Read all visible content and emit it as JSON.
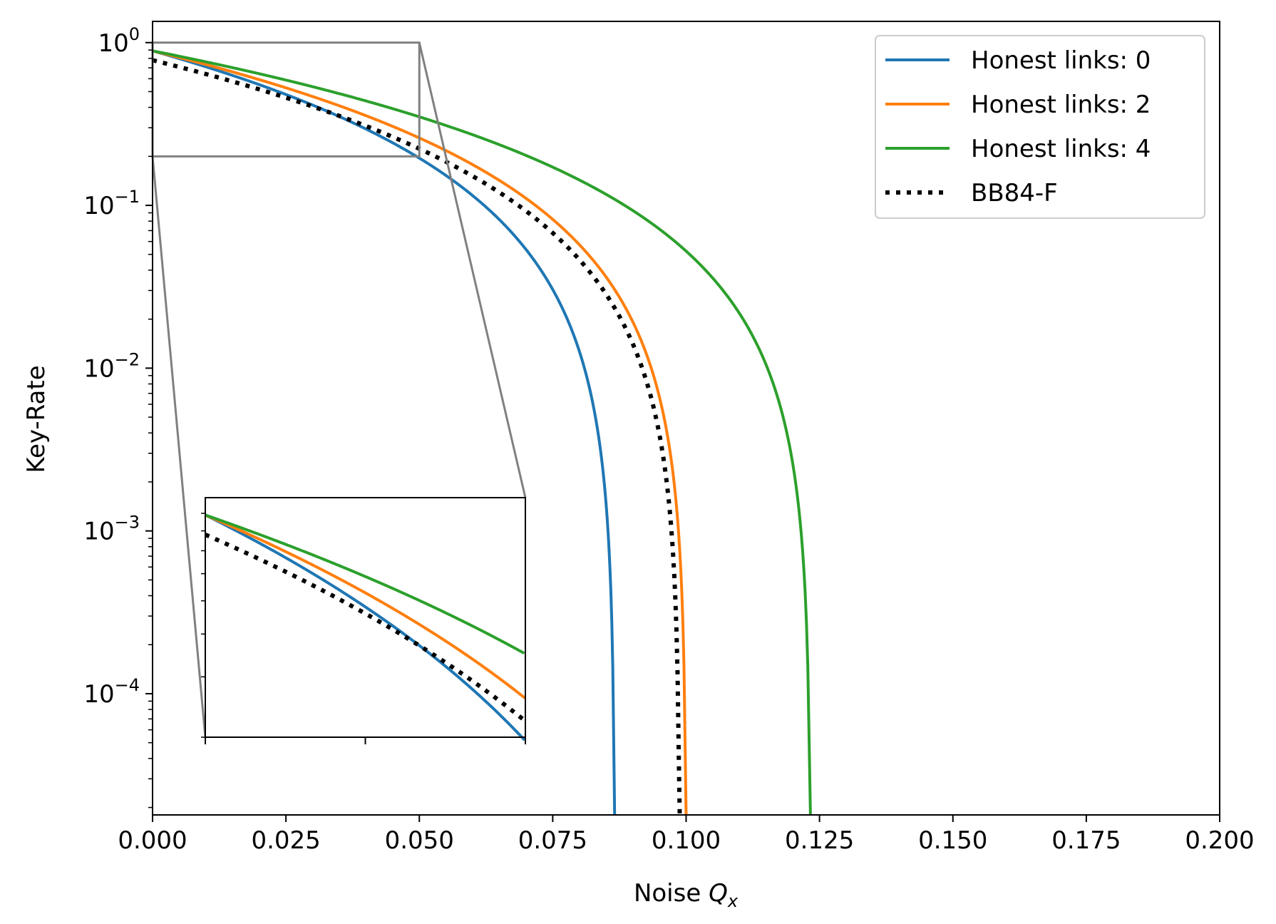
{
  "chart_data": {
    "type": "line",
    "xlabel": "Noise",
    "xlabel_symbol": "Q",
    "xlabel_subscript": "x",
    "ylabel": "Key-Rate",
    "xscale": "linear",
    "yscale": "log",
    "xlim": [
      0.0,
      0.2
    ],
    "ylim": [
      1.8e-05,
      1.35
    ],
    "x_ticks": [
      0.0,
      0.025,
      0.05,
      0.075,
      0.1,
      0.125,
      0.15,
      0.175,
      0.2
    ],
    "x_tick_labels": [
      "0.000",
      "0.025",
      "0.050",
      "0.075",
      "0.100",
      "0.125",
      "0.150",
      "0.175",
      "0.200"
    ],
    "y_ticks": [
      1,
      0.1,
      0.01,
      0.001,
      0.0001
    ],
    "y_tick_labels": [
      {
        "base": "10",
        "exp": "0"
      },
      {
        "base": "10",
        "exp": "−1"
      },
      {
        "base": "10",
        "exp": "−2"
      },
      {
        "base": "10",
        "exp": "−3"
      },
      {
        "base": "10",
        "exp": "−4"
      }
    ],
    "grid": false,
    "legend_position": "top-right",
    "series": [
      {
        "name": "Honest links: 0",
        "color": "#1f77b4",
        "style": "solid",
        "y0": 0.89,
        "cutoff": 0.0866
      },
      {
        "name": "Honest links: 2",
        "color": "#ff7f0e",
        "style": "solid",
        "y0": 0.89,
        "cutoff": 0.1
      },
      {
        "name": "Honest links: 4",
        "color": "#2ca02c",
        "style": "solid",
        "y0": 0.89,
        "cutoff": 0.1233
      },
      {
        "name": "BB84-F",
        "color": "#000000",
        "style": "dotted",
        "y0": 0.78,
        "cutoff": 0.0988
      }
    ],
    "inset": {
      "xlim": [
        0.0,
        0.05
      ],
      "ylim": [
        0.2,
        1.0
      ],
      "yscale": "log",
      "x_ticks": [
        0.0,
        0.025,
        0.05
      ]
    }
  }
}
